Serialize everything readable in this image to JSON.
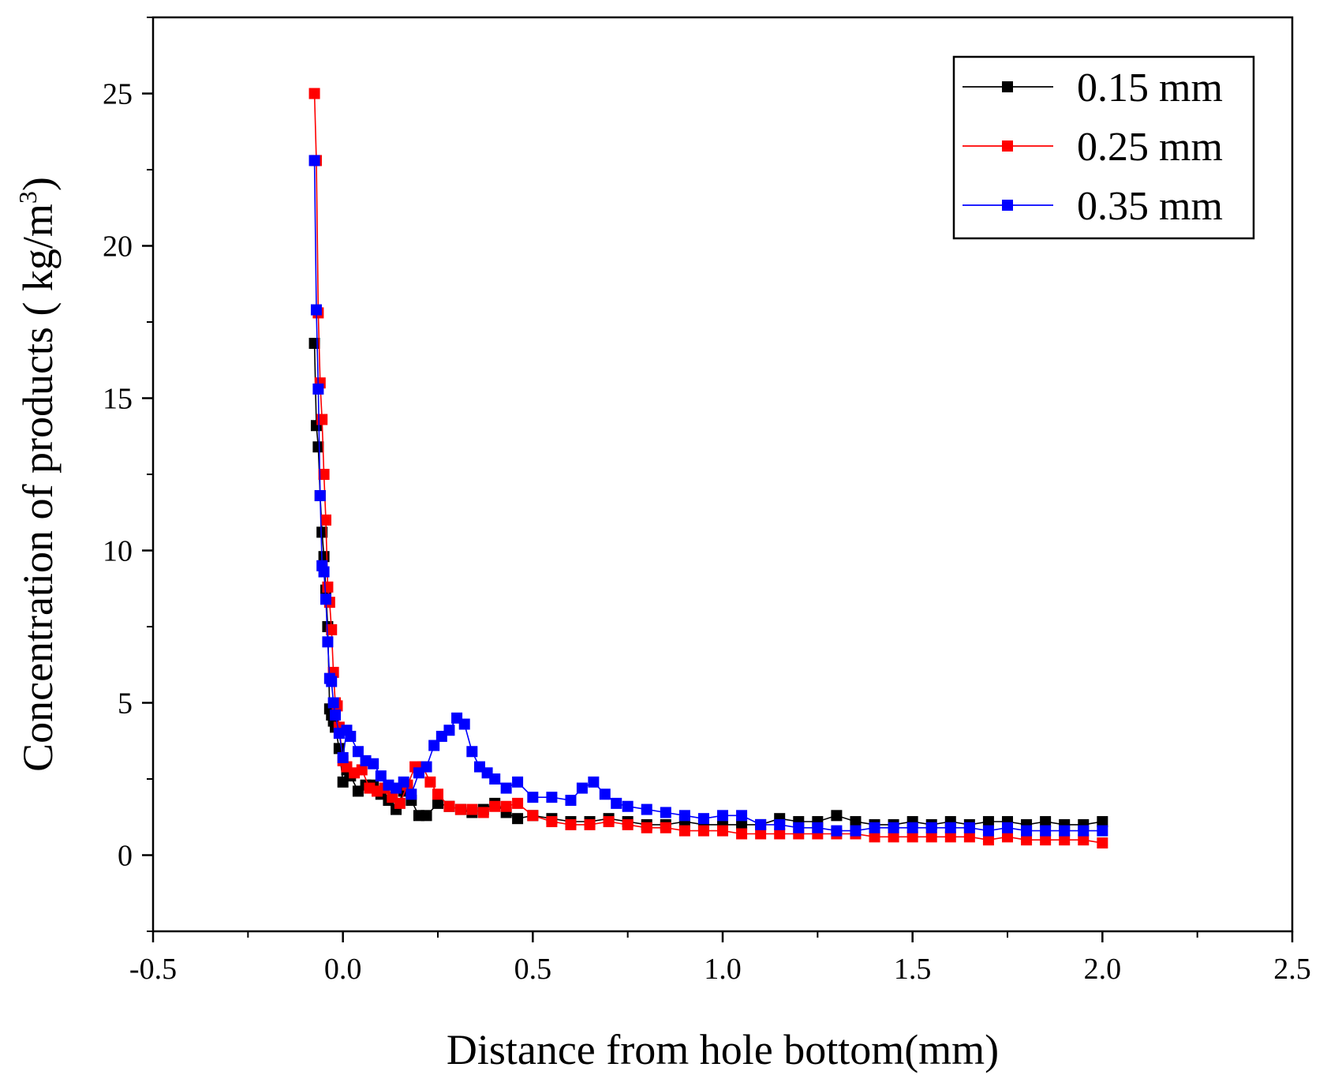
{
  "chart_data": {
    "type": "scatter",
    "title": "",
    "xlabel": "Distance from hole bottom(mm)",
    "ylabel_main": "Concentration of products ( kg/m",
    "ylabel_sup": "3",
    "ylabel_end": ")",
    "xlim": [
      -0.5,
      2.5
    ],
    "ylim": [
      -2.5,
      27.5
    ],
    "xticks": [
      -0.5,
      0.0,
      0.5,
      1.0,
      1.5,
      2.0,
      2.5
    ],
    "xtick_labels": [
      "-0.5",
      "0.0",
      "0.5",
      "1.0",
      "1.5",
      "2.0",
      "2.5"
    ],
    "yticks": [
      0,
      5,
      10,
      15,
      20,
      25
    ],
    "ytick_labels": [
      "0",
      "5",
      "10",
      "15",
      "20",
      "25"
    ],
    "legend_position": "top-right",
    "grid": false,
    "series": [
      {
        "name": "0.15 mm",
        "color": "#000000",
        "x": [
          -0.075,
          -0.07,
          -0.065,
          -0.06,
          -0.055,
          -0.05,
          -0.045,
          -0.04,
          -0.035,
          -0.03,
          -0.025,
          -0.02,
          -0.01,
          0.0,
          0.01,
          0.02,
          0.04,
          0.06,
          0.08,
          0.1,
          0.12,
          0.14,
          0.16,
          0.18,
          0.2,
          0.22,
          0.25,
          0.28,
          0.31,
          0.34,
          0.37,
          0.4,
          0.43,
          0.46,
          0.5,
          0.55,
          0.6,
          0.65,
          0.7,
          0.75,
          0.8,
          0.85,
          0.9,
          0.95,
          1.0,
          1.05,
          1.1,
          1.15,
          1.2,
          1.25,
          1.3,
          1.35,
          1.4,
          1.45,
          1.5,
          1.55,
          1.6,
          1.65,
          1.7,
          1.75,
          1.8,
          1.85,
          1.9,
          1.95,
          2.0
        ],
        "y": [
          16.8,
          14.1,
          13.4,
          11.8,
          10.6,
          9.8,
          8.7,
          7.5,
          4.8,
          4.6,
          4.4,
          4.2,
          3.5,
          2.4,
          2.8,
          2.6,
          2.1,
          2.3,
          2.3,
          2.0,
          1.8,
          1.5,
          2.1,
          1.8,
          1.3,
          1.3,
          1.7,
          1.6,
          1.5,
          1.4,
          1.5,
          1.7,
          1.4,
          1.2,
          1.3,
          1.2,
          1.1,
          1.1,
          1.2,
          1.1,
          1.0,
          1.0,
          1.1,
          1.0,
          1.0,
          1.0,
          1.0,
          1.2,
          1.1,
          1.1,
          1.3,
          1.1,
          1.0,
          1.0,
          1.1,
          1.0,
          1.1,
          1.0,
          1.1,
          1.1,
          1.0,
          1.1,
          1.0,
          1.0,
          1.1
        ]
      },
      {
        "name": "0.25 mm",
        "color": "#ff0000",
        "x": [
          -0.075,
          -0.07,
          -0.065,
          -0.06,
          -0.055,
          -0.05,
          -0.045,
          -0.04,
          -0.035,
          -0.03,
          -0.025,
          -0.02,
          -0.015,
          -0.01,
          0.0,
          0.01,
          0.03,
          0.05,
          0.07,
          0.09,
          0.11,
          0.13,
          0.15,
          0.17,
          0.19,
          0.21,
          0.23,
          0.25,
          0.28,
          0.31,
          0.34,
          0.37,
          0.4,
          0.43,
          0.46,
          0.5,
          0.55,
          0.6,
          0.65,
          0.7,
          0.75,
          0.8,
          0.85,
          0.9,
          0.95,
          1.0,
          1.05,
          1.1,
          1.15,
          1.2,
          1.25,
          1.3,
          1.35,
          1.4,
          1.45,
          1.5,
          1.55,
          1.6,
          1.65,
          1.7,
          1.75,
          1.8,
          1.85,
          1.9,
          1.95,
          2.0
        ],
        "y": [
          25.0,
          22.8,
          17.8,
          15.5,
          14.3,
          12.5,
          11.0,
          8.8,
          8.3,
          7.4,
          6.0,
          5.0,
          4.9,
          4.2,
          3.1,
          2.9,
          2.7,
          2.8,
          2.2,
          2.1,
          2.2,
          1.9,
          1.7,
          2.3,
          2.9,
          2.9,
          2.4,
          2.0,
          1.6,
          1.5,
          1.5,
          1.4,
          1.6,
          1.6,
          1.7,
          1.3,
          1.1,
          1.0,
          1.0,
          1.1,
          1.0,
          0.9,
          0.9,
          0.8,
          0.8,
          0.8,
          0.7,
          0.7,
          0.7,
          0.7,
          0.7,
          0.7,
          0.7,
          0.6,
          0.6,
          0.6,
          0.6,
          0.6,
          0.6,
          0.5,
          0.6,
          0.5,
          0.5,
          0.5,
          0.5,
          0.4
        ]
      },
      {
        "name": "0.35 mm",
        "color": "#0000ff",
        "x": [
          -0.075,
          -0.07,
          -0.065,
          -0.06,
          -0.055,
          -0.05,
          -0.045,
          -0.04,
          -0.035,
          -0.03,
          -0.025,
          -0.02,
          -0.01,
          0.0,
          0.01,
          0.02,
          0.04,
          0.06,
          0.08,
          0.1,
          0.12,
          0.14,
          0.16,
          0.18,
          0.2,
          0.22,
          0.24,
          0.26,
          0.28,
          0.3,
          0.32,
          0.34,
          0.36,
          0.38,
          0.4,
          0.43,
          0.46,
          0.5,
          0.55,
          0.6,
          0.63,
          0.66,
          0.69,
          0.72,
          0.75,
          0.8,
          0.85,
          0.9,
          0.95,
          1.0,
          1.05,
          1.1,
          1.15,
          1.2,
          1.25,
          1.3,
          1.35,
          1.4,
          1.45,
          1.5,
          1.55,
          1.6,
          1.65,
          1.7,
          1.75,
          1.8,
          1.85,
          1.9,
          1.95,
          2.0
        ],
        "y": [
          22.8,
          17.9,
          15.3,
          11.8,
          9.5,
          9.3,
          8.4,
          7.0,
          5.8,
          5.7,
          5.0,
          4.6,
          4.0,
          3.2,
          4.1,
          3.9,
          3.4,
          3.1,
          3.0,
          2.6,
          2.3,
          2.2,
          2.4,
          2.0,
          2.7,
          2.9,
          3.6,
          3.9,
          4.1,
          4.5,
          4.3,
          3.4,
          2.9,
          2.7,
          2.5,
          2.2,
          2.4,
          1.9,
          1.9,
          1.8,
          2.2,
          2.4,
          2.0,
          1.7,
          1.6,
          1.5,
          1.4,
          1.3,
          1.2,
          1.3,
          1.3,
          1.0,
          1.0,
          0.9,
          0.9,
          0.8,
          0.8,
          0.9,
          0.9,
          0.9,
          0.9,
          0.9,
          0.9,
          0.8,
          0.9,
          0.8,
          0.8,
          0.8,
          0.8,
          0.8
        ]
      }
    ]
  }
}
